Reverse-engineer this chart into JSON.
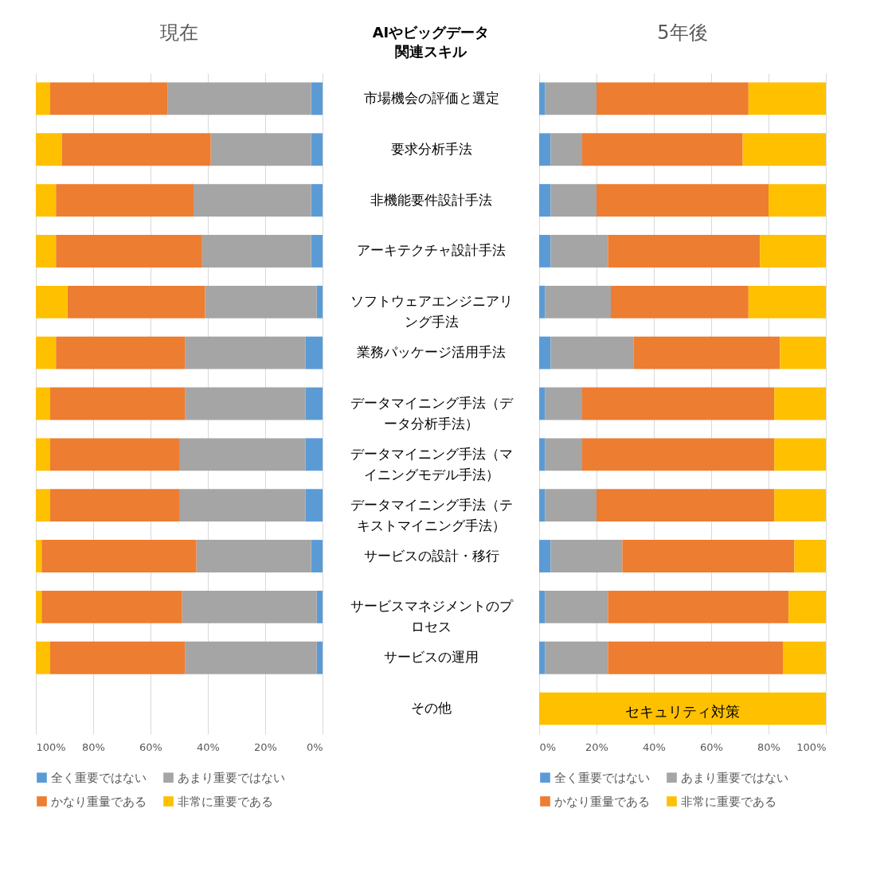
{
  "chart_data": [
    {
      "type": "bar",
      "orientation": "horizontal",
      "stacked": true,
      "title": "現在",
      "ylabel": "AIやビッグデータ関連スキル",
      "categories": [
        "市場機会の評価と選定",
        "要求分析手法",
        "非機能要件設計手法",
        "アーキテクチャ設計手法",
        "ソフトウェアエンジニアリング手法",
        "業務パッケージ活用手法",
        "データマイニング手法（データ分析手法）",
        "データマイニング手法（マイニングモデル手法）",
        "データマイニング手法（テキストマイニング手法）",
        "サービスの設計・移行",
        "サービスマネジメントのプロセス",
        "サービスの運用",
        "その他"
      ],
      "series": [
        {
          "name": "全く重要ではない",
          "color": "#5b9bd5",
          "values": [
            4,
            4,
            4,
            4,
            2,
            6,
            6,
            6,
            6,
            4,
            2,
            2,
            null
          ]
        },
        {
          "name": "あまり重要ではない",
          "color": "#a5a5a5",
          "values": [
            50,
            35,
            41,
            38,
            39,
            42,
            42,
            44,
            44,
            40,
            47,
            46,
            null
          ]
        },
        {
          "name": "かなり重量である",
          "color": "#ed7d31",
          "values": [
            41,
            52,
            48,
            51,
            48,
            45,
            47,
            45,
            45,
            54,
            49,
            47,
            null
          ]
        },
        {
          "name": "非常に重要である",
          "color": "#ffc000",
          "values": [
            5,
            9,
            7,
            7,
            11,
            7,
            5,
            5,
            5,
            2,
            2,
            5,
            null
          ]
        }
      ],
      "xlim": [
        100,
        0
      ],
      "xticks": [
        {
          "value": 100,
          "label": "100%"
        },
        {
          "value": 80,
          "label": "80%"
        },
        {
          "value": 60,
          "label": "60%"
        },
        {
          "value": 40,
          "label": "40%"
        },
        {
          "value": 20,
          "label": "20%"
        },
        {
          "value": 0,
          "label": "0%"
        }
      ],
      "grid": "x",
      "legend": "bottom"
    },
    {
      "type": "bar",
      "orientation": "horizontal",
      "stacked": true,
      "title": "5年後",
      "categories": [
        "市場機会の評価と選定",
        "要求分析手法",
        "非機能要件設計手法",
        "アーキテクチャ設計手法",
        "ソフトウェアエンジニアリング手法",
        "業務パッケージ活用手法",
        "データマイニング手法（データ分析手法）",
        "データマイニング手法（マイニングモデル手法）",
        "データマイニング手法（テキストマイニング手法）",
        "サービスの設計・移行",
        "サービスマネジメントのプロセス",
        "サービスの運用",
        "その他"
      ],
      "series": [
        {
          "name": "全く重要ではない",
          "color": "#5b9bd5",
          "values": [
            2,
            4,
            4,
            4,
            2,
            4,
            2,
            2,
            2,
            4,
            2,
            2,
            0
          ]
        },
        {
          "name": "あまり重要ではない",
          "color": "#a5a5a5",
          "values": [
            18,
            11,
            16,
            20,
            23,
            29,
            13,
            13,
            18,
            25,
            22,
            22,
            0
          ]
        },
        {
          "name": "かなり重量である",
          "color": "#ed7d31",
          "values": [
            53,
            56,
            60,
            53,
            48,
            51,
            67,
            67,
            62,
            60,
            63,
            61,
            0
          ]
        },
        {
          "name": "非常に重要である",
          "color": "#ffc000",
          "values": [
            27,
            29,
            20,
            23,
            27,
            16,
            18,
            18,
            18,
            11,
            13,
            15,
            100
          ]
        }
      ],
      "annotations": [
        "セキュリティ対策"
      ],
      "xlim": [
        0,
        100
      ],
      "xticks": [
        {
          "value": 0,
          "label": "0%"
        },
        {
          "value": 20,
          "label": "20%"
        },
        {
          "value": 40,
          "label": "40%"
        },
        {
          "value": 60,
          "label": "60%"
        },
        {
          "value": 80,
          "label": "80%"
        },
        {
          "value": 100,
          "label": "100%"
        }
      ],
      "grid": "x",
      "legend": "bottom",
      "tick_labels": "x"
    }
  ]
}
